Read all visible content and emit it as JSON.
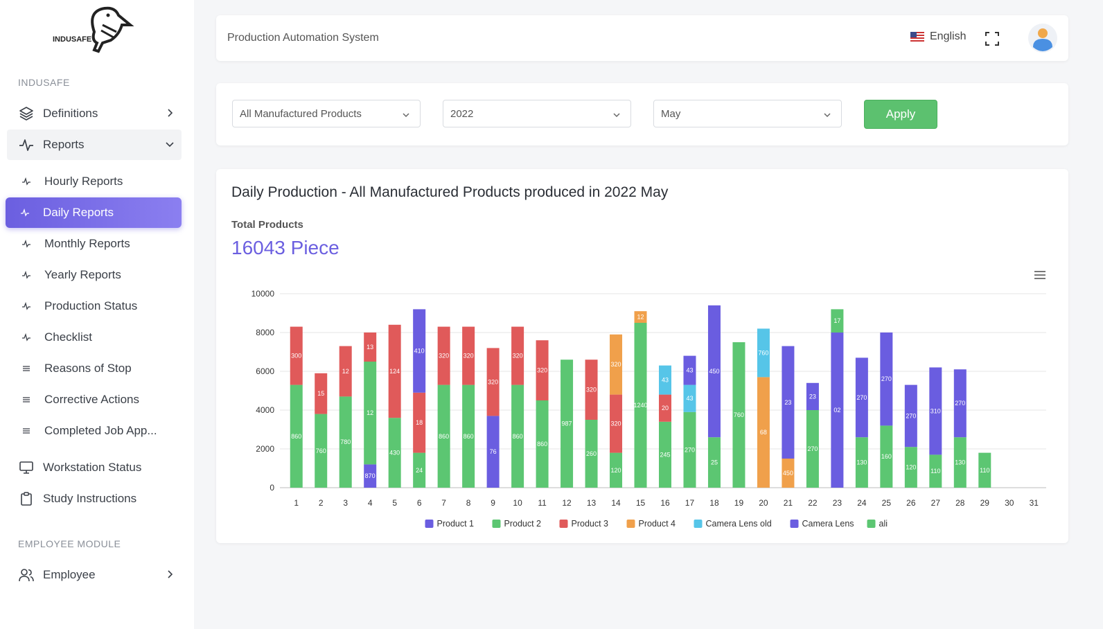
{
  "sidebar": {
    "brand": "INDUSAFE",
    "section_main": "INDUSAFE",
    "section_employee": "EMPLOYEE MODULE",
    "definitions": "Definitions",
    "reports": "Reports",
    "sub": {
      "hourly": "Hourly Reports",
      "daily": "Daily Reports",
      "monthly": "Monthly Reports",
      "yearly": "Yearly Reports",
      "production_status": "Production Status",
      "checklist": "Checklist",
      "reasons_of_stop": "Reasons of Stop",
      "corrective_actions": "Corrective Actions",
      "completed_job": "Completed Job App..."
    },
    "workstation": "Workstation Status",
    "study": "Study Instructions",
    "employee": "Employee"
  },
  "header": {
    "title": "Production Automation System",
    "language": "English"
  },
  "filters": {
    "product": "All Manufactured Products",
    "year": "2022",
    "month": "May",
    "apply": "Apply"
  },
  "main": {
    "chart_title": "Daily Production - All Manufactured Products produced in 2022 May",
    "total_label": "Total Products",
    "total_value": "16043 Piece"
  },
  "colors": {
    "accent": "#6b5fe0",
    "apply": "#5cc16f"
  },
  "chart_data": {
    "type": "bar",
    "stacked": true,
    "categories": [
      "1",
      "2",
      "3",
      "4",
      "5",
      "6",
      "7",
      "8",
      "9",
      "10",
      "11",
      "12",
      "13",
      "14",
      "15",
      "16",
      "17",
      "18",
      "19",
      "20",
      "21",
      "22",
      "23",
      "24",
      "25",
      "26",
      "27",
      "28",
      "29",
      "30",
      "31"
    ],
    "y_ticks": [
      0,
      2000,
      4000,
      6000,
      8000,
      10000
    ],
    "ylim": [
      0,
      10000
    ],
    "series": [
      {
        "name": "Product 1",
        "color": "#6a5de0",
        "values": [
          0,
          0,
          0,
          1200,
          0,
          0,
          0,
          0,
          3700,
          0,
          0,
          0,
          0,
          0,
          0,
          0,
          0,
          0,
          0,
          0,
          0,
          0,
          0,
          0,
          0,
          0,
          0,
          0,
          0,
          0,
          0
        ]
      },
      {
        "name": "Product 2",
        "color": "#5cc672",
        "values": [
          5300,
          3800,
          4700,
          5300,
          3600,
          1800,
          5300,
          5300,
          0,
          5300,
          4500,
          6600,
          3500,
          1800,
          8500,
          3400,
          3900,
          2600,
          7500,
          0,
          0,
          4000,
          0,
          2600,
          3200,
          2100,
          1700,
          2600,
          1800,
          0,
          0
        ]
      },
      {
        "name": "Product 3",
        "color": "#e05a5a",
        "values": [
          3000,
          2100,
          2600,
          1500,
          4800,
          3100,
          3000,
          3000,
          3500,
          3000,
          3100,
          0,
          3100,
          3000,
          0,
          1400,
          0,
          0,
          0,
          0,
          0,
          0,
          0,
          0,
          0,
          0,
          0,
          0,
          0,
          0,
          0
        ]
      },
      {
        "name": "Product 4",
        "color": "#f0a04b",
        "values": [
          0,
          0,
          0,
          0,
          0,
          0,
          0,
          0,
          0,
          0,
          0,
          0,
          0,
          3100,
          600,
          0,
          0,
          0,
          0,
          5700,
          1500,
          0,
          0,
          0,
          0,
          0,
          0,
          0,
          0,
          0,
          0
        ]
      },
      {
        "name": "Camera Lens old",
        "color": "#56c5e8",
        "values": [
          0,
          0,
          0,
          0,
          0,
          0,
          0,
          0,
          0,
          0,
          0,
          0,
          0,
          0,
          0,
          1500,
          1400,
          0,
          0,
          2500,
          0,
          0,
          0,
          0,
          0,
          0,
          0,
          0,
          0,
          0,
          0
        ]
      },
      {
        "name": "Camera Lens",
        "color": "#6a5de0",
        "values": [
          0,
          0,
          0,
          0,
          0,
          4300,
          0,
          0,
          0,
          0,
          0,
          0,
          0,
          0,
          0,
          0,
          1500,
          6800,
          0,
          0,
          5800,
          1400,
          8000,
          4100,
          4800,
          3200,
          4500,
          3500,
          0,
          0,
          0
        ]
      },
      {
        "name": "ali",
        "color": "#5cc672",
        "values": [
          0,
          0,
          0,
          0,
          0,
          0,
          0,
          0,
          0,
          0,
          0,
          0,
          0,
          0,
          0,
          0,
          0,
          0,
          0,
          0,
          0,
          0,
          1200,
          0,
          0,
          0,
          0,
          0,
          0,
          0,
          0
        ]
      }
    ],
    "data_labels": [
      [
        "860",
        "300"
      ],
      [
        "760",
        "15"
      ],
      [
        "780",
        "12"
      ],
      [
        "870",
        "12",
        "13"
      ],
      [
        "430",
        "124"
      ],
      [
        "24",
        "18",
        "410"
      ],
      [
        "860",
        "320"
      ],
      [
        "860",
        "320"
      ],
      [
        "76",
        "320"
      ],
      [
        "860",
        "320"
      ],
      [
        "860",
        "320"
      ],
      [
        "987"
      ],
      [
        "260",
        "320"
      ],
      [
        "120",
        "320",
        "320"
      ],
      [
        "1240",
        "12"
      ],
      [
        "245",
        "20",
        "43"
      ],
      [
        "270",
        "43",
        "43"
      ],
      [
        "25",
        "450"
      ],
      [
        "760"
      ],
      [
        "68",
        "760"
      ],
      [
        "450",
        "23"
      ],
      [
        "270",
        "23"
      ],
      [
        "02",
        "17"
      ],
      [
        "130",
        "270"
      ],
      [
        "160",
        "270"
      ],
      [
        "120",
        "270"
      ],
      [
        "110",
        "310"
      ],
      [
        "130",
        "270"
      ],
      [
        "110"
      ],
      [],
      []
    ]
  }
}
